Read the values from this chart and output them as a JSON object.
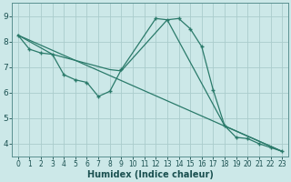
{
  "background_color": "#cce8e8",
  "grid_color": "#aacccc",
  "line_color": "#2a7a6a",
  "marker_color": "#2a7a6a",
  "xlabel": "Humidex (Indice chaleur)",
  "xlim": [
    -0.5,
    23.5
  ],
  "ylim": [
    3.5,
    9.5
  ],
  "yticks": [
    4,
    5,
    6,
    7,
    8,
    9
  ],
  "xticks": [
    0,
    1,
    2,
    3,
    4,
    5,
    6,
    7,
    8,
    9,
    10,
    11,
    12,
    13,
    14,
    15,
    16,
    17,
    18,
    19,
    20,
    21,
    22,
    23
  ],
  "curve_main_x": [
    0,
    1,
    2,
    3,
    4,
    5,
    6,
    7,
    8,
    9,
    12,
    13,
    14,
    15,
    16,
    17,
    18,
    19,
    20,
    21,
    22,
    23
  ],
  "curve_main_y": [
    8.25,
    7.7,
    7.55,
    7.5,
    6.7,
    6.5,
    6.4,
    5.85,
    6.05,
    6.9,
    8.9,
    8.85,
    8.9,
    8.5,
    7.8,
    6.1,
    4.7,
    4.25,
    4.2,
    4.0,
    3.85,
    3.7
  ],
  "curve_smooth_x": [
    0,
    3,
    8,
    9,
    13,
    18,
    23
  ],
  "curve_smooth_y": [
    8.25,
    7.5,
    6.9,
    6.85,
    8.85,
    4.7,
    3.7
  ],
  "curve_line_x": [
    0,
    23
  ],
  "curve_line_y": [
    8.25,
    3.7
  ],
  "tick_fontsize": 6,
  "label_fontsize": 7
}
